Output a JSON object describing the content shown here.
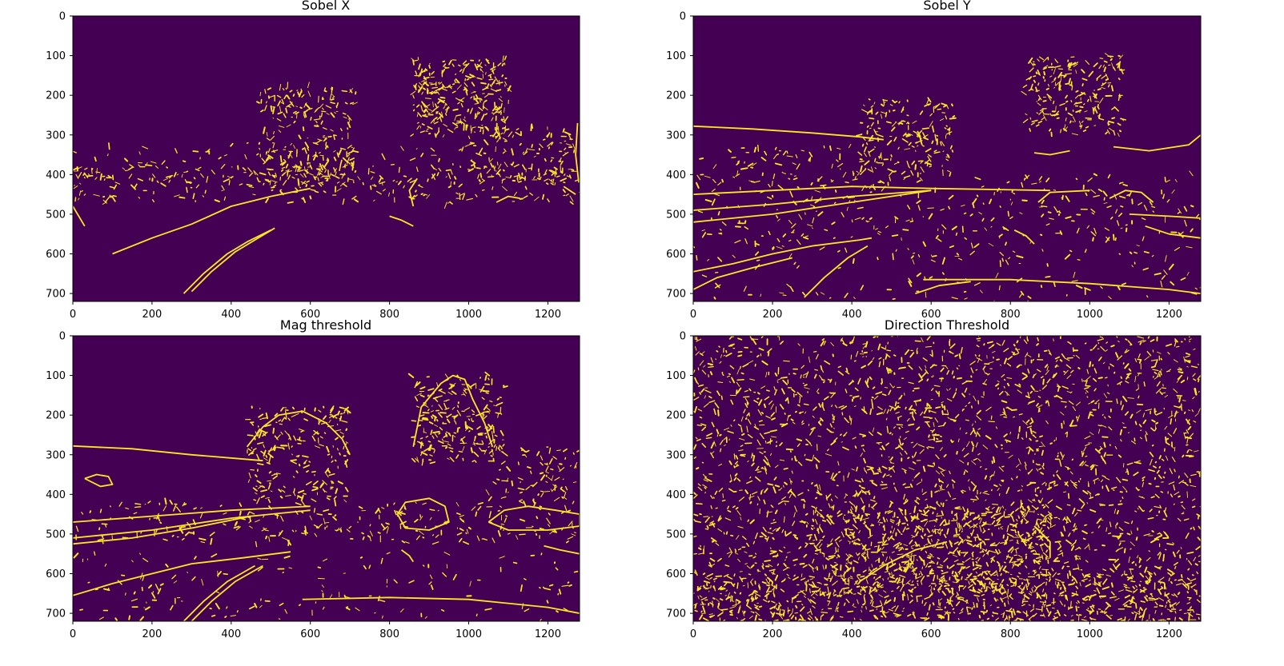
{
  "chart_data": [
    {
      "type": "heatmap",
      "title": "Sobel X",
      "xlim": [
        0,
        1280
      ],
      "ylim": [
        720,
        0
      ],
      "xticks": [
        0,
        200,
        400,
        600,
        800,
        1000,
        1200
      ],
      "yticks": [
        0,
        100,
        200,
        300,
        400,
        500,
        600,
        700
      ],
      "colormap": {
        "low": "#440154",
        "high": "#fde725"
      },
      "edges": [
        [
          [
            280,
            700
          ],
          [
            330,
            650
          ],
          [
            390,
            600
          ],
          [
            440,
            570
          ],
          [
            500,
            540
          ]
        ],
        [
          [
            300,
            695
          ],
          [
            350,
            645
          ],
          [
            410,
            595
          ],
          [
            460,
            565
          ],
          [
            510,
            535
          ]
        ],
        [
          [
            100,
            600
          ],
          [
            200,
            560
          ],
          [
            300,
            525
          ],
          [
            400,
            480
          ],
          [
            500,
            455
          ],
          [
            600,
            435
          ]
        ],
        [
          [
            800,
            505
          ],
          [
            830,
            515
          ],
          [
            860,
            530
          ]
        ],
        [
          [
            0,
            480
          ],
          [
            30,
            530
          ]
        ],
        [
          [
            870,
            410
          ],
          [
            850,
            440
          ],
          [
            860,
            480
          ]
        ],
        [
          [
            1070,
            470
          ],
          [
            1100,
            455
          ],
          [
            1130,
            460
          ]
        ],
        [
          [
            1240,
            430
          ],
          [
            1270,
            450
          ]
        ],
        [
          [
            1275,
            270
          ],
          [
            1270,
            350
          ],
          [
            1278,
            420
          ]
        ]
      ],
      "speckle_regions": [
        {
          "x": [
            0,
            1280
          ],
          "y": [
            380,
            470
          ],
          "count": 260
        },
        {
          "x": [
            470,
            720
          ],
          "y": [
            180,
            420
          ],
          "count": 240
        },
        {
          "x": [
            860,
            1100
          ],
          "y": [
            110,
            300
          ],
          "count": 280
        },
        {
          "x": [
            0,
            1280
          ],
          "y": [
            320,
            420
          ],
          "count": 120
        },
        {
          "x": [
            1000,
            1280
          ],
          "y": [
            280,
            420
          ],
          "count": 100
        }
      ]
    },
    {
      "type": "heatmap",
      "title": "Sobel Y",
      "xlim": [
        0,
        1280
      ],
      "ylim": [
        720,
        0
      ],
      "xticks": [
        0,
        200,
        400,
        600,
        800,
        1000,
        1200
      ],
      "yticks": [
        0,
        100,
        200,
        300,
        400,
        500,
        600,
        700
      ],
      "colormap": {
        "low": "#440154",
        "high": "#fde725"
      },
      "edges": [
        [
          [
            0,
            278
          ],
          [
            150,
            285
          ],
          [
            300,
            295
          ],
          [
            420,
            305
          ],
          [
            480,
            312
          ]
        ],
        [
          [
            0,
            450
          ],
          [
            200,
            440
          ],
          [
            400,
            430
          ],
          [
            600,
            435
          ],
          [
            900,
            440
          ]
        ],
        [
          [
            0,
            490
          ],
          [
            200,
            475
          ],
          [
            400,
            455
          ],
          [
            600,
            440
          ]
        ],
        [
          [
            0,
            520
          ],
          [
            200,
            500
          ],
          [
            400,
            470
          ],
          [
            600,
            440
          ]
        ],
        [
          [
            0,
            645
          ],
          [
            100,
            625
          ],
          [
            200,
            600
          ],
          [
            300,
            580
          ],
          [
            420,
            565
          ],
          [
            450,
            560
          ]
        ],
        [
          [
            0,
            690
          ],
          [
            60,
            660
          ],
          [
            150,
            635
          ],
          [
            250,
            610
          ]
        ],
        [
          [
            280,
            710
          ],
          [
            330,
            660
          ],
          [
            390,
            610
          ],
          [
            440,
            580
          ]
        ],
        [
          [
            560,
            700
          ],
          [
            620,
            680
          ],
          [
            700,
            670
          ]
        ],
        [
          [
            580,
            665
          ],
          [
            800,
            665
          ],
          [
            1000,
            675
          ],
          [
            1200,
            690
          ],
          [
            1280,
            700
          ]
        ],
        [
          [
            870,
            470
          ],
          [
            900,
            445
          ],
          [
            1000,
            440
          ]
        ],
        [
          [
            1050,
            460
          ],
          [
            1090,
            440
          ],
          [
            1130,
            445
          ],
          [
            1160,
            470
          ]
        ],
        [
          [
            1100,
            500
          ],
          [
            1200,
            505
          ],
          [
            1280,
            510
          ]
        ],
        [
          [
            1140,
            530
          ],
          [
            1200,
            550
          ],
          [
            1280,
            560
          ]
        ],
        [
          [
            1060,
            330
          ],
          [
            1150,
            340
          ],
          [
            1250,
            325
          ],
          [
            1280,
            300
          ]
        ],
        [
          [
            860,
            345
          ],
          [
            900,
            350
          ],
          [
            950,
            340
          ]
        ],
        [
          [
            810,
            540
          ],
          [
            840,
            555
          ],
          [
            860,
            575
          ]
        ]
      ],
      "speckle_regions": [
        {
          "x": [
            0,
            1280
          ],
          "y": [
            400,
            560
          ],
          "count": 280
        },
        {
          "x": [
            410,
            660
          ],
          "y": [
            210,
            400
          ],
          "count": 180
        },
        {
          "x": [
            840,
            1080
          ],
          "y": [
            100,
            300
          ],
          "count": 220
        },
        {
          "x": [
            0,
            1280
          ],
          "y": [
            560,
            720
          ],
          "count": 150
        },
        {
          "x": [
            0,
            420
          ],
          "y": [
            330,
            420
          ],
          "count": 60
        }
      ]
    },
    {
      "type": "heatmap",
      "title": "Mag threshold",
      "xlim": [
        0,
        1280
      ],
      "ylim": [
        720,
        0
      ],
      "xticks": [
        0,
        200,
        400,
        600,
        800,
        1000,
        1200
      ],
      "yticks": [
        0,
        100,
        200,
        300,
        400,
        500,
        600,
        700
      ],
      "colormap": {
        "low": "#440154",
        "high": "#fde725"
      },
      "edges": [
        [
          [
            0,
            278
          ],
          [
            150,
            285
          ],
          [
            300,
            300
          ],
          [
            420,
            310
          ],
          [
            480,
            315
          ]
        ],
        [
          [
            0,
            470
          ],
          [
            200,
            455
          ],
          [
            400,
            440
          ],
          [
            600,
            430
          ]
        ],
        [
          [
            0,
            510
          ],
          [
            200,
            490
          ],
          [
            400,
            460
          ],
          [
            600,
            440
          ]
        ],
        [
          [
            0,
            525
          ],
          [
            150,
            510
          ],
          [
            300,
            485
          ],
          [
            450,
            455
          ]
        ],
        [
          [
            0,
            655
          ],
          [
            100,
            625
          ],
          [
            200,
            600
          ],
          [
            300,
            575
          ],
          [
            430,
            560
          ],
          [
            550,
            545
          ]
        ],
        [
          [
            280,
            720
          ],
          [
            330,
            670
          ],
          [
            390,
            620
          ],
          [
            460,
            580
          ]
        ],
        [
          [
            300,
            720
          ],
          [
            350,
            670
          ],
          [
            410,
            620
          ],
          [
            480,
            580
          ]
        ],
        [
          [
            580,
            665
          ],
          [
            800,
            660
          ],
          [
            1000,
            665
          ],
          [
            1200,
            685
          ],
          [
            1280,
            700
          ]
        ],
        [
          [
            820,
            450
          ],
          [
            840,
            420
          ],
          [
            900,
            410
          ],
          [
            940,
            430
          ],
          [
            950,
            470
          ],
          [
            900,
            490
          ],
          [
            840,
            485
          ],
          [
            820,
            450
          ]
        ],
        [
          [
            1050,
            470
          ],
          [
            1090,
            440
          ],
          [
            1150,
            430
          ],
          [
            1220,
            440
          ],
          [
            1280,
            450
          ],
          [
            1280,
            480
          ],
          [
            1200,
            490
          ],
          [
            1100,
            490
          ],
          [
            1050,
            470
          ]
        ],
        [
          [
            30,
            360
          ],
          [
            60,
            350
          ],
          [
            90,
            355
          ],
          [
            100,
            375
          ],
          [
            70,
            380
          ],
          [
            30,
            360
          ]
        ],
        [
          [
            1190,
            530
          ],
          [
            1230,
            540
          ],
          [
            1280,
            550
          ]
        ],
        [
          [
            830,
            540
          ],
          [
            850,
            555
          ],
          [
            860,
            570
          ]
        ],
        [
          [
            860,
            280
          ],
          [
            880,
            180
          ],
          [
            930,
            120
          ],
          [
            960,
            100
          ],
          [
            990,
            110
          ],
          [
            1010,
            160
          ],
          [
            1040,
            220
          ],
          [
            1060,
            280
          ]
        ],
        [
          [
            440,
            280
          ],
          [
            480,
            230
          ],
          [
            520,
            200
          ],
          [
            580,
            190
          ],
          [
            640,
            220
          ],
          [
            680,
            260
          ],
          [
            700,
            300
          ]
        ]
      ],
      "speckle_regions": [
        {
          "x": [
            0,
            1280
          ],
          "y": [
            420,
            520
          ],
          "count": 260
        },
        {
          "x": [
            440,
            700
          ],
          "y": [
            180,
            420
          ],
          "count": 220
        },
        {
          "x": [
            860,
            1090
          ],
          "y": [
            100,
            320
          ],
          "count": 230
        },
        {
          "x": [
            0,
            1280
          ],
          "y": [
            550,
            720
          ],
          "count": 150
        },
        {
          "x": [
            1050,
            1280
          ],
          "y": [
            280,
            420
          ],
          "count": 90
        }
      ]
    },
    {
      "type": "heatmap",
      "title": "Direction Threshold",
      "xlim": [
        0,
        1280
      ],
      "ylim": [
        720,
        0
      ],
      "xticks": [
        0,
        200,
        400,
        600,
        800,
        1000,
        1200
      ],
      "yticks": [
        0,
        100,
        200,
        300,
        400,
        500,
        600,
        700
      ],
      "colormap": {
        "low": "#440154",
        "high": "#fde725"
      },
      "edges": [
        [
          [
            420,
            620
          ],
          [
            480,
            580
          ],
          [
            560,
            540
          ],
          [
            640,
            520
          ]
        ],
        [
          [
            860,
            480
          ],
          [
            900,
            520
          ],
          [
            900,
            560
          ]
        ],
        [
          [
            820,
            500
          ],
          [
            840,
            530
          ]
        ]
      ],
      "speckle_regions": [
        {
          "x": [
            0,
            1280
          ],
          "y": [
            0,
            720
          ],
          "count": 2600
        },
        {
          "x": [
            300,
            900
          ],
          "y": [
            430,
            650
          ],
          "count": 500
        },
        {
          "x": [
            0,
            1280
          ],
          "y": [
            600,
            720
          ],
          "count": 400
        }
      ]
    }
  ]
}
